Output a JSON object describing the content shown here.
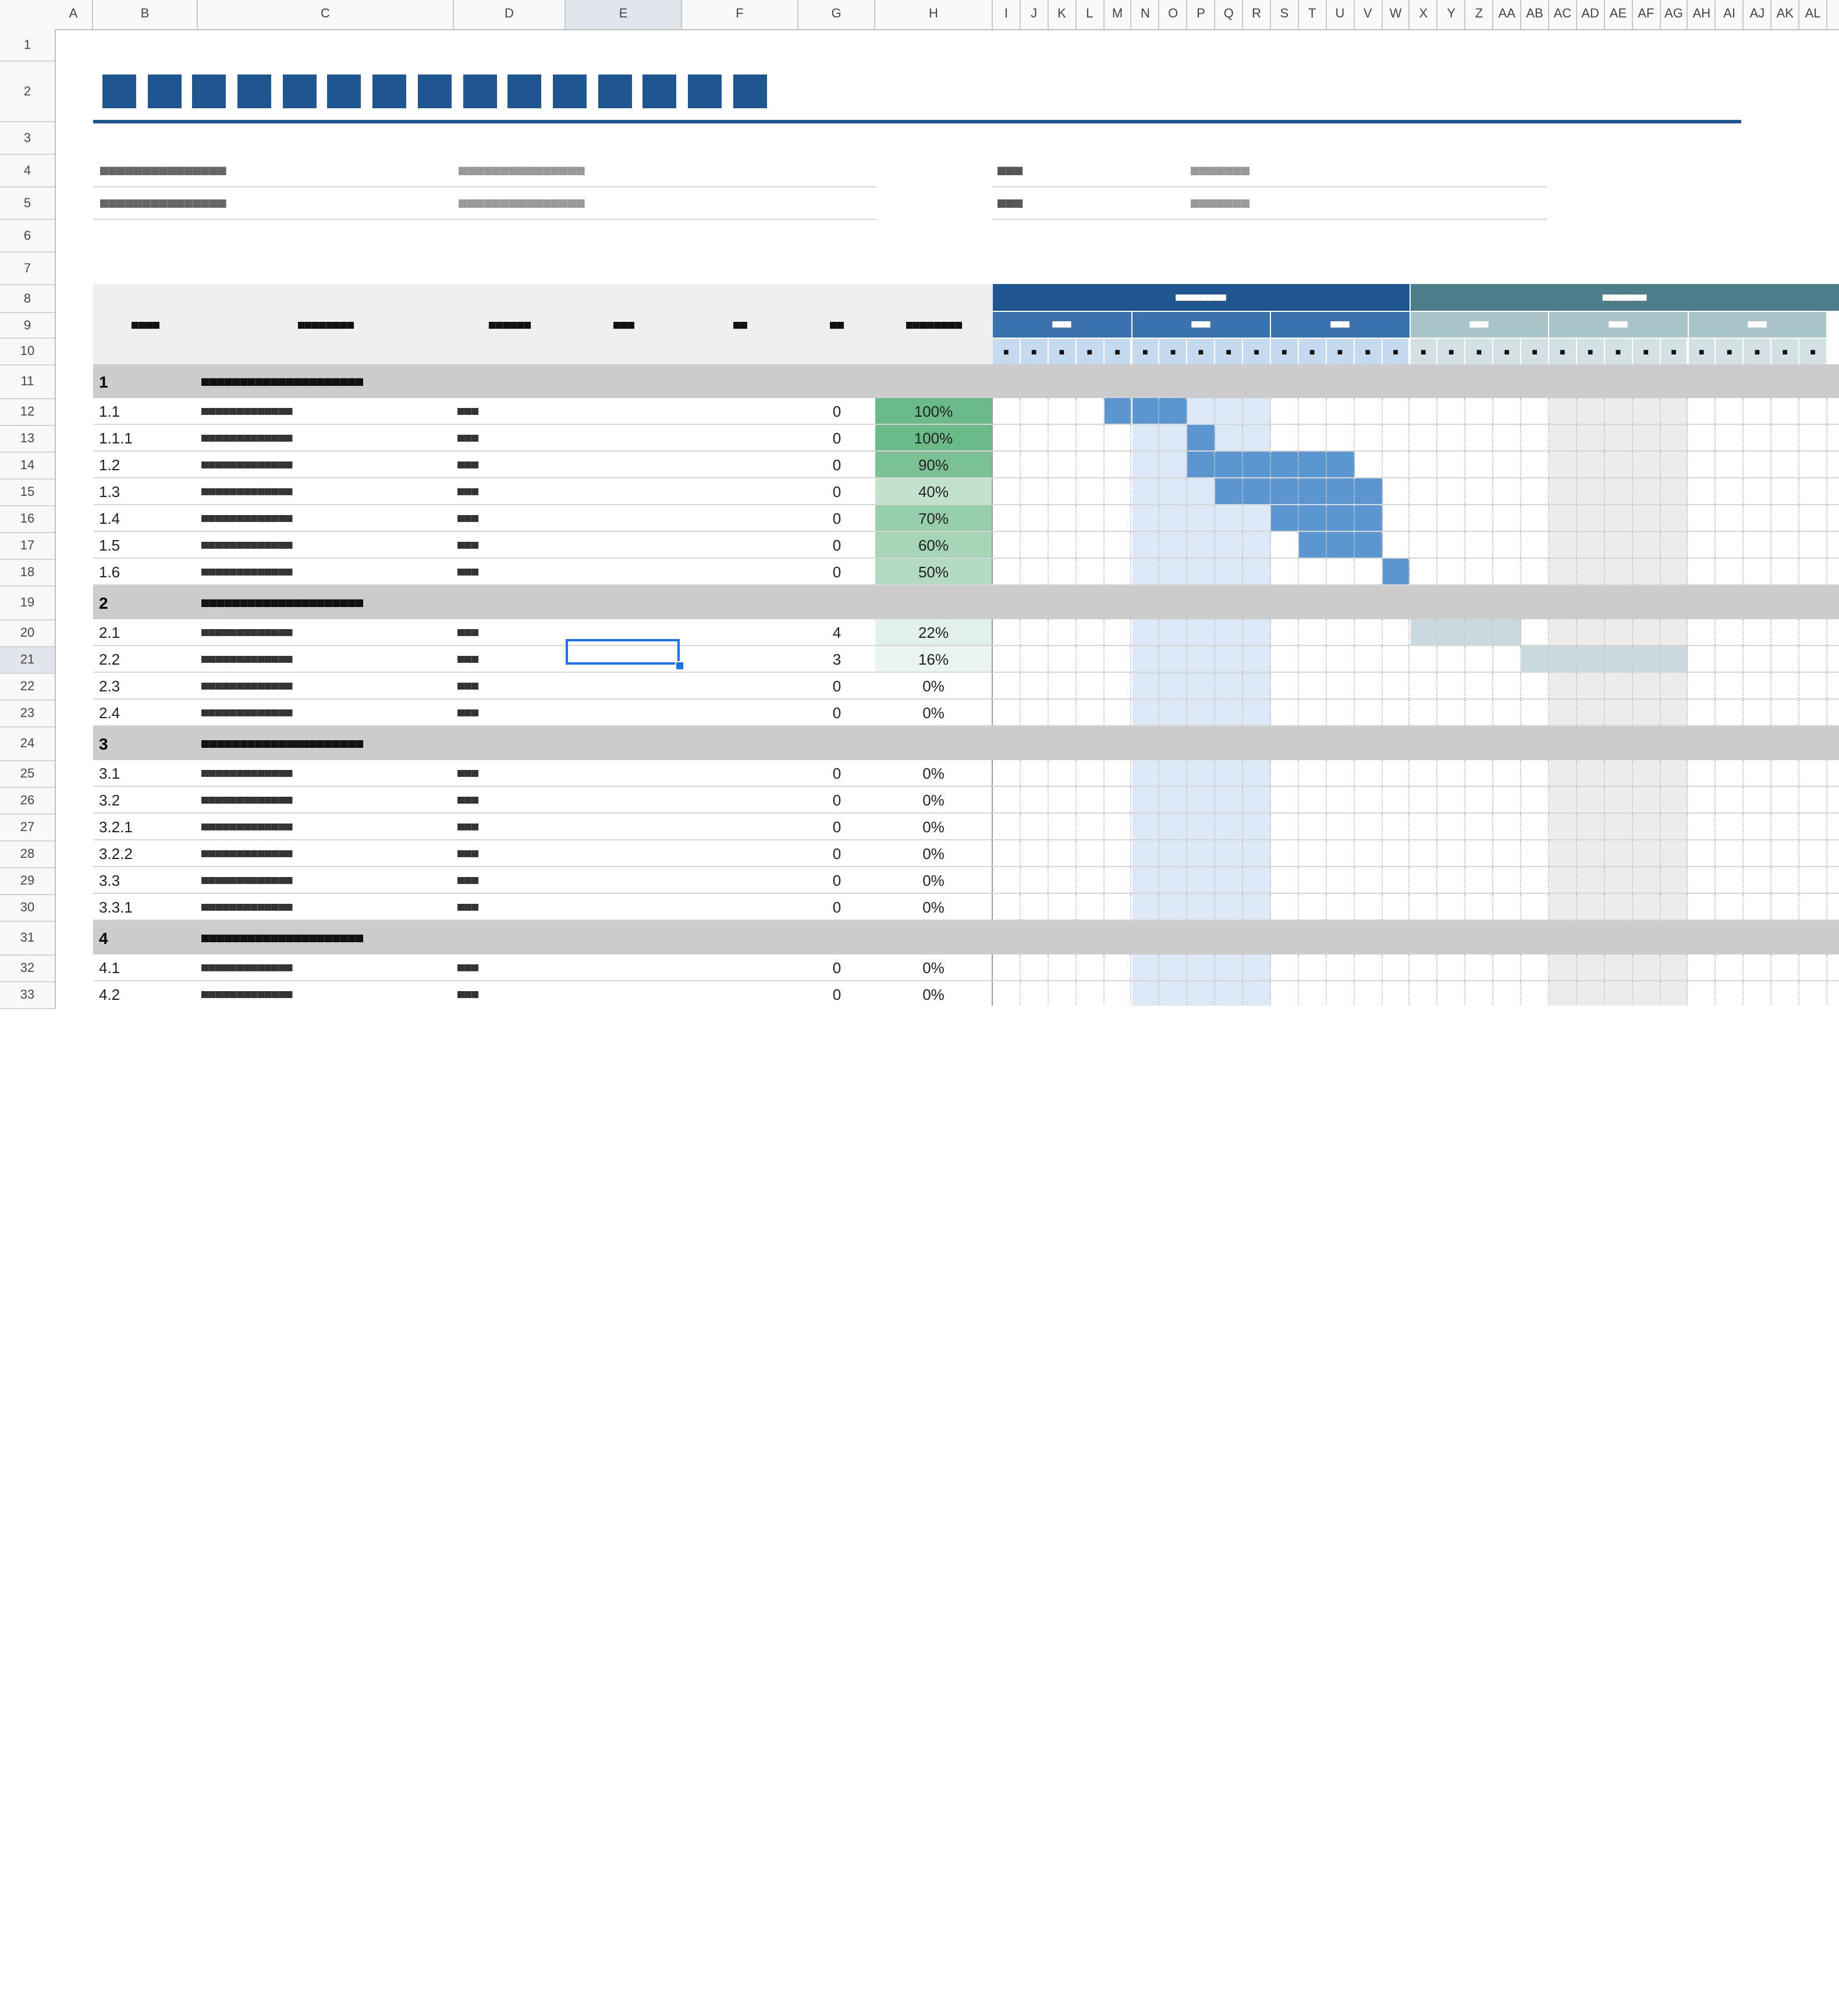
{
  "columns": [
    "A",
    "B",
    "C",
    "D",
    "E",
    "F",
    "G",
    "H",
    "I",
    "J",
    "K",
    "L",
    "M",
    "N",
    "O",
    "P",
    "Q",
    "R",
    "S",
    "T",
    "U",
    "V",
    "W",
    "X",
    "Y",
    "Z",
    "AA",
    "AB",
    "AC",
    "AD",
    "AE",
    "AF",
    "AG",
    "AH",
    "AI",
    "AJ",
    "AK",
    "AL"
  ],
  "selected_column": "E",
  "rows": [
    "1",
    "2",
    "3",
    "4",
    "5",
    "6",
    "7",
    "8",
    "9",
    "10",
    "11",
    "12",
    "13",
    "14",
    "15",
    "16",
    "17",
    "18",
    "19",
    "20",
    "21",
    "22",
    "23",
    "24",
    "25",
    "26",
    "27",
    "28",
    "29",
    "30",
    "31",
    "32",
    "33"
  ],
  "selected_row": "21",
  "title_squares": 15,
  "info": {
    "left_label_1": "■■■■■■■■■■■■■■■",
    "left_value_1": "■■■■■■■■■■■■■■■",
    "left_label_2": "■■■■■■■■■■■■■■■",
    "left_value_2": "■■■■■■■■■■■■■■■",
    "right_label_1": "■■■",
    "right_value_1": "■■■■■■■",
    "right_label_2": "■■■",
    "right_value_2": "■■■■■■■"
  },
  "table_header": {
    "col_b": "■■■■",
    "col_c": "■■■■■■■■",
    "col_d": "■■■■■■",
    "col_e": "■■■",
    "col_f": "■■",
    "col_g": "■■",
    "col_h": "■■■■■■■■"
  },
  "timeline": {
    "period_1": "■■■■■■■■",
    "period_2": "■■■■■■■",
    "weeks": [
      "■■■",
      "■■■",
      "■■■",
      "■■■",
      "■■■",
      "■■■"
    ],
    "day_mark": "■",
    "color_period_1": "#1f5591",
    "color_period_2": "#4d7c8a",
    "color_week_1": "#3a72b0",
    "color_week_2": "#a8c4c9",
    "color_day_1": "#c5daee",
    "color_day_2": "#d4e1e4"
  },
  "phase_title": "■■■■■■■■■■■■■■■■■■■■■",
  "task_name": "■■■■■■■■■■■■■",
  "task_owner": "■■■",
  "tasks": [
    {
      "id": "1",
      "phase": true
    },
    {
      "id": "1.1",
      "g": "0",
      "pct": "100%"
    },
    {
      "id": "1.1.1",
      "g": "0",
      "pct": "100%"
    },
    {
      "id": "1.2",
      "g": "0",
      "pct": "90%"
    },
    {
      "id": "1.3",
      "g": "0",
      "pct": "40%"
    },
    {
      "id": "1.4",
      "g": "0",
      "pct": "70%"
    },
    {
      "id": "1.5",
      "g": "0",
      "pct": "60%"
    },
    {
      "id": "1.6",
      "g": "0",
      "pct": "50%"
    },
    {
      "id": "2",
      "phase": true
    },
    {
      "id": "2.1",
      "g": "4",
      "pct": "22%"
    },
    {
      "id": "2.2",
      "g": "3",
      "pct": "16%"
    },
    {
      "id": "2.3",
      "g": "0",
      "pct": "0%"
    },
    {
      "id": "2.4",
      "g": "0",
      "pct": "0%"
    },
    {
      "id": "3",
      "phase": true
    },
    {
      "id": "3.1",
      "g": "0",
      "pct": "0%"
    },
    {
      "id": "3.2",
      "g": "0",
      "pct": "0%"
    },
    {
      "id": "3.2.1",
      "g": "0",
      "pct": "0%"
    },
    {
      "id": "3.2.2",
      "g": "0",
      "pct": "0%"
    },
    {
      "id": "3.3",
      "g": "0",
      "pct": "0%"
    },
    {
      "id": "3.3.1",
      "g": "0",
      "pct": "0%"
    },
    {
      "id": "4",
      "phase": true
    },
    {
      "id": "4.1",
      "g": "0",
      "pct": "0%"
    },
    {
      "id": "4.2",
      "g": "0",
      "pct": "0%"
    }
  ],
  "colors": {
    "bar_blue": "#5b96d0",
    "bar_teal": "#c9d9de",
    "shade_blue": "#dce8f5",
    "shade_grey": "#ececec",
    "phase_grey": "#cccccc",
    "pct_100": "#6aba8a",
    "pct_90": "#7cc196",
    "pct_70": "#96cdaa",
    "pct_60": "#a5d5b6",
    "pct_50": "#b3dbc1",
    "pct_40": "#c3e2ce",
    "pct_22": "#e2f1e7",
    "pct_16": "#eaf5ee"
  }
}
